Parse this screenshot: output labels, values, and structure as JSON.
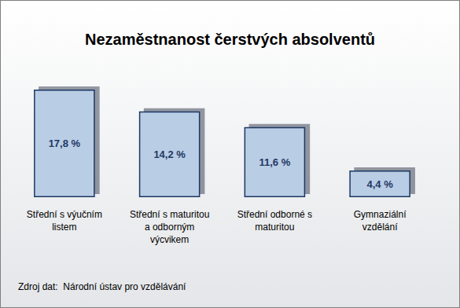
{
  "chart_data": {
    "type": "bar",
    "title": "Nezaměstnanost čerstvých absolventů",
    "categories": [
      "Střední s výučním\nlistem",
      "Střední s maturitou\na odborným\nvýcvikem",
      "Střední odborné s\nmaturitou",
      "Gymnaziální\nvzdělání"
    ],
    "values": [
      17.8,
      14.2,
      11.6,
      4.4
    ],
    "value_labels": [
      "17,8 %",
      "14,2 %",
      "11,6 %",
      "4,4 %"
    ],
    "data_labels": true,
    "color": "#b9cde5",
    "ylim": [
      0,
      20
    ],
    "tick_labels": "x",
    "grid": false,
    "note": "Zdroj dat:  Národní ústav pro vzdělávání"
  }
}
